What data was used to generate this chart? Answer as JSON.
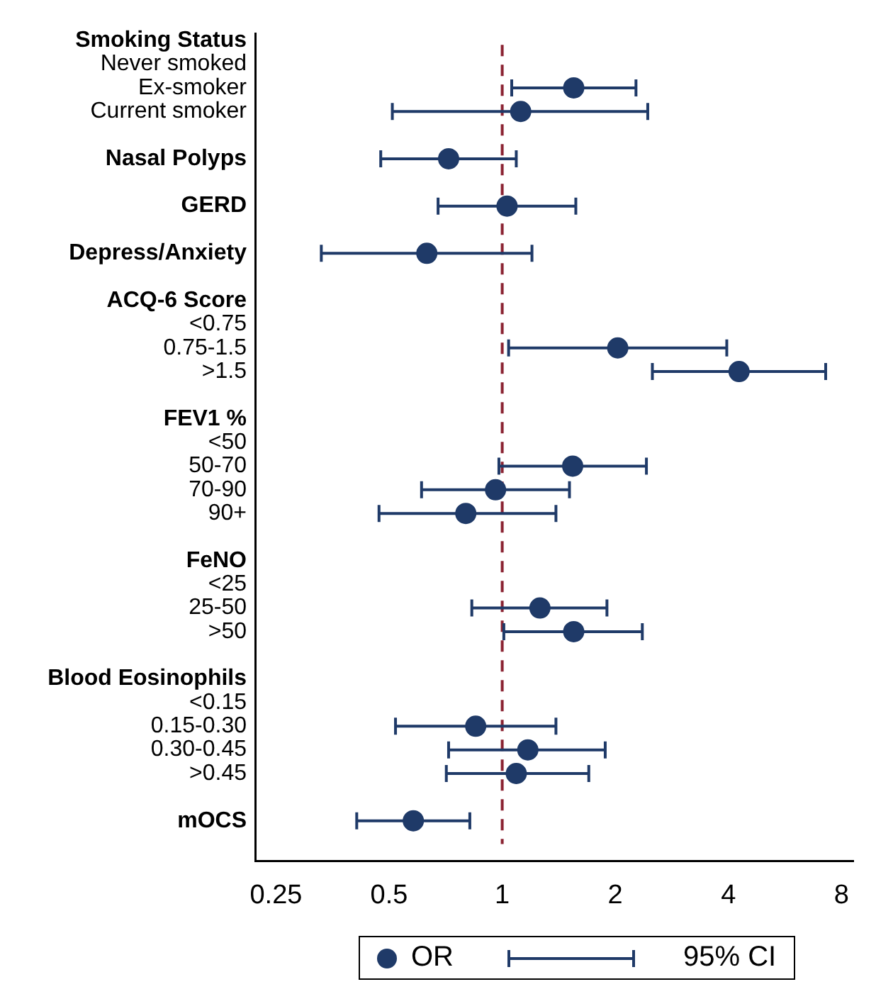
{
  "chart_data": {
    "type": "scatter",
    "orientation": "horizontal",
    "categories": [
      "Smoking Status",
      "Never smoked",
      "Ex-smoker",
      "Current smoker",
      null,
      "Nasal Polyps",
      null,
      "GERD",
      null,
      "Depress/Anxiety",
      null,
      "ACQ-6 Score",
      "<0.75",
      "0.75-1.5",
      ">1.5",
      null,
      "FEV1 %",
      "<50",
      "50-70",
      "70-90",
      "90+",
      null,
      "FeNO",
      "<25",
      "25-50",
      ">50",
      null,
      "Blood Eosinophils",
      "<0.15",
      "0.15-0.30",
      "0.30-0.45",
      ">0.45",
      null,
      "mOCS"
    ],
    "series": [
      {
        "name": "OR",
        "color": "#1f3a68",
        "values": [
          null,
          null,
          1.55,
          1.12,
          null,
          0.72,
          null,
          1.03,
          null,
          0.63,
          null,
          null,
          null,
          2.03,
          4.27,
          null,
          null,
          null,
          1.54,
          0.96,
          0.8,
          null,
          null,
          null,
          1.26,
          1.55,
          null,
          null,
          null,
          0.85,
          1.17,
          1.09,
          null,
          0.58
        ],
        "errors": [
          null,
          null,
          [
            1.06,
            2.27
          ],
          [
            0.51,
            2.44
          ],
          null,
          [
            0.475,
            1.09
          ],
          null,
          [
            0.675,
            1.57
          ],
          null,
          [
            0.33,
            1.2
          ],
          null,
          null,
          null,
          [
            1.04,
            3.96
          ],
          [
            2.51,
            7.26
          ],
          null,
          null,
          null,
          [
            0.98,
            2.42
          ],
          [
            0.61,
            1.51
          ],
          [
            0.47,
            1.39
          ],
          null,
          null,
          null,
          [
            0.83,
            1.9
          ],
          [
            1.01,
            2.36
          ],
          null,
          null,
          null,
          [
            0.52,
            1.39
          ],
          [
            0.72,
            1.88
          ],
          [
            0.71,
            1.7
          ],
          null,
          [
            0.41,
            0.82
          ]
        ]
      }
    ],
    "log": "x",
    "xlim": [
      0.22,
      8.6
    ],
    "xticks": [
      0.25,
      0.5,
      1,
      2,
      4,
      8
    ],
    "marker": "circle",
    "grid": false,
    "legend": "bottom",
    "ref_lines": [
      {
        "axis": "x",
        "value": 1,
        "color": "#8b2332",
        "line_style": "dashed"
      }
    ],
    "annotations": [
      "95% CI"
    ]
  }
}
